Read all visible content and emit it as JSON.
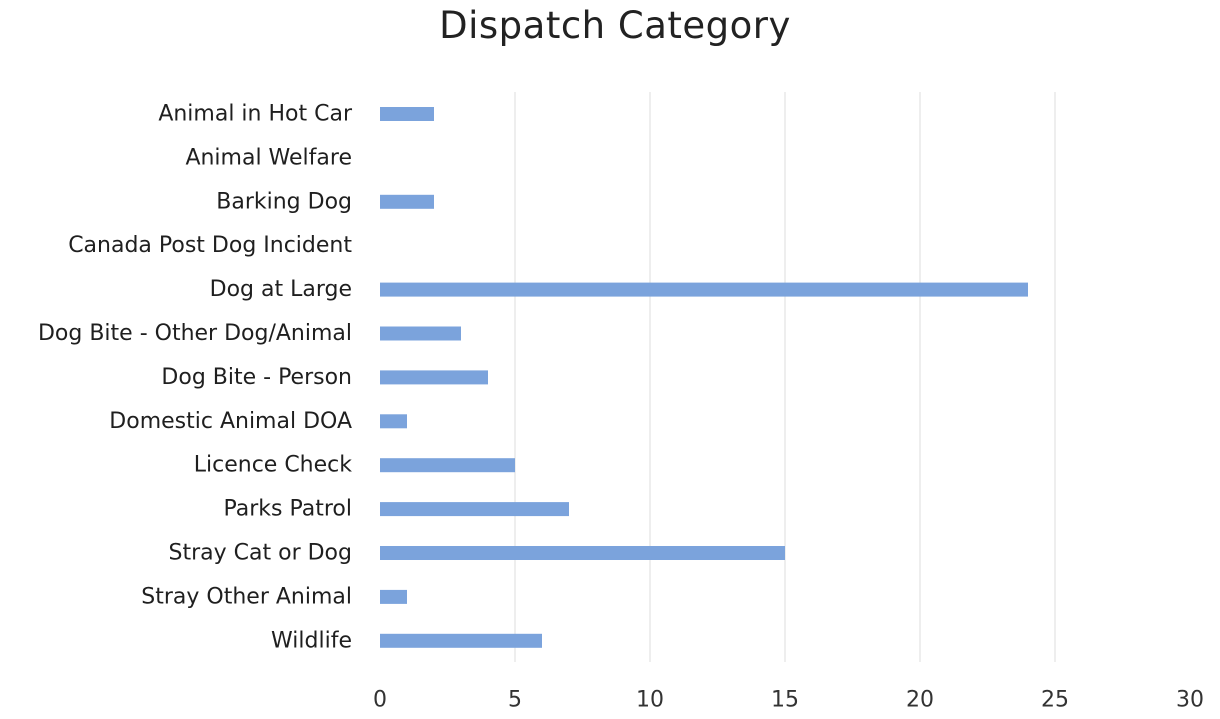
{
  "chart_data": {
    "type": "bar",
    "orientation": "horizontal",
    "title": "Dispatch Category",
    "xlabel": "",
    "ylabel": "",
    "categories": [
      "Animal in Hot Car",
      "Animal Welfare",
      "Barking Dog",
      "Canada Post Dog Incident",
      "Dog at Large",
      "Dog Bite - Other Dog/Animal",
      "Dog Bite - Person",
      "Domestic Animal DOA",
      "Licence Check",
      "Parks Patrol",
      "Stray Cat or Dog",
      "Stray Other Animal",
      "Wildlife"
    ],
    "values": [
      2,
      0,
      2,
      0,
      24,
      3,
      4,
      1,
      5,
      7,
      15,
      1,
      6
    ],
    "xlim": [
      0,
      30
    ],
    "xticks": [
      0,
      5,
      10,
      15,
      20,
      25,
      30
    ],
    "grid": true,
    "legend": "none",
    "bar_color": "#7ba3dc",
    "grid_color": "#dcdcdc"
  }
}
